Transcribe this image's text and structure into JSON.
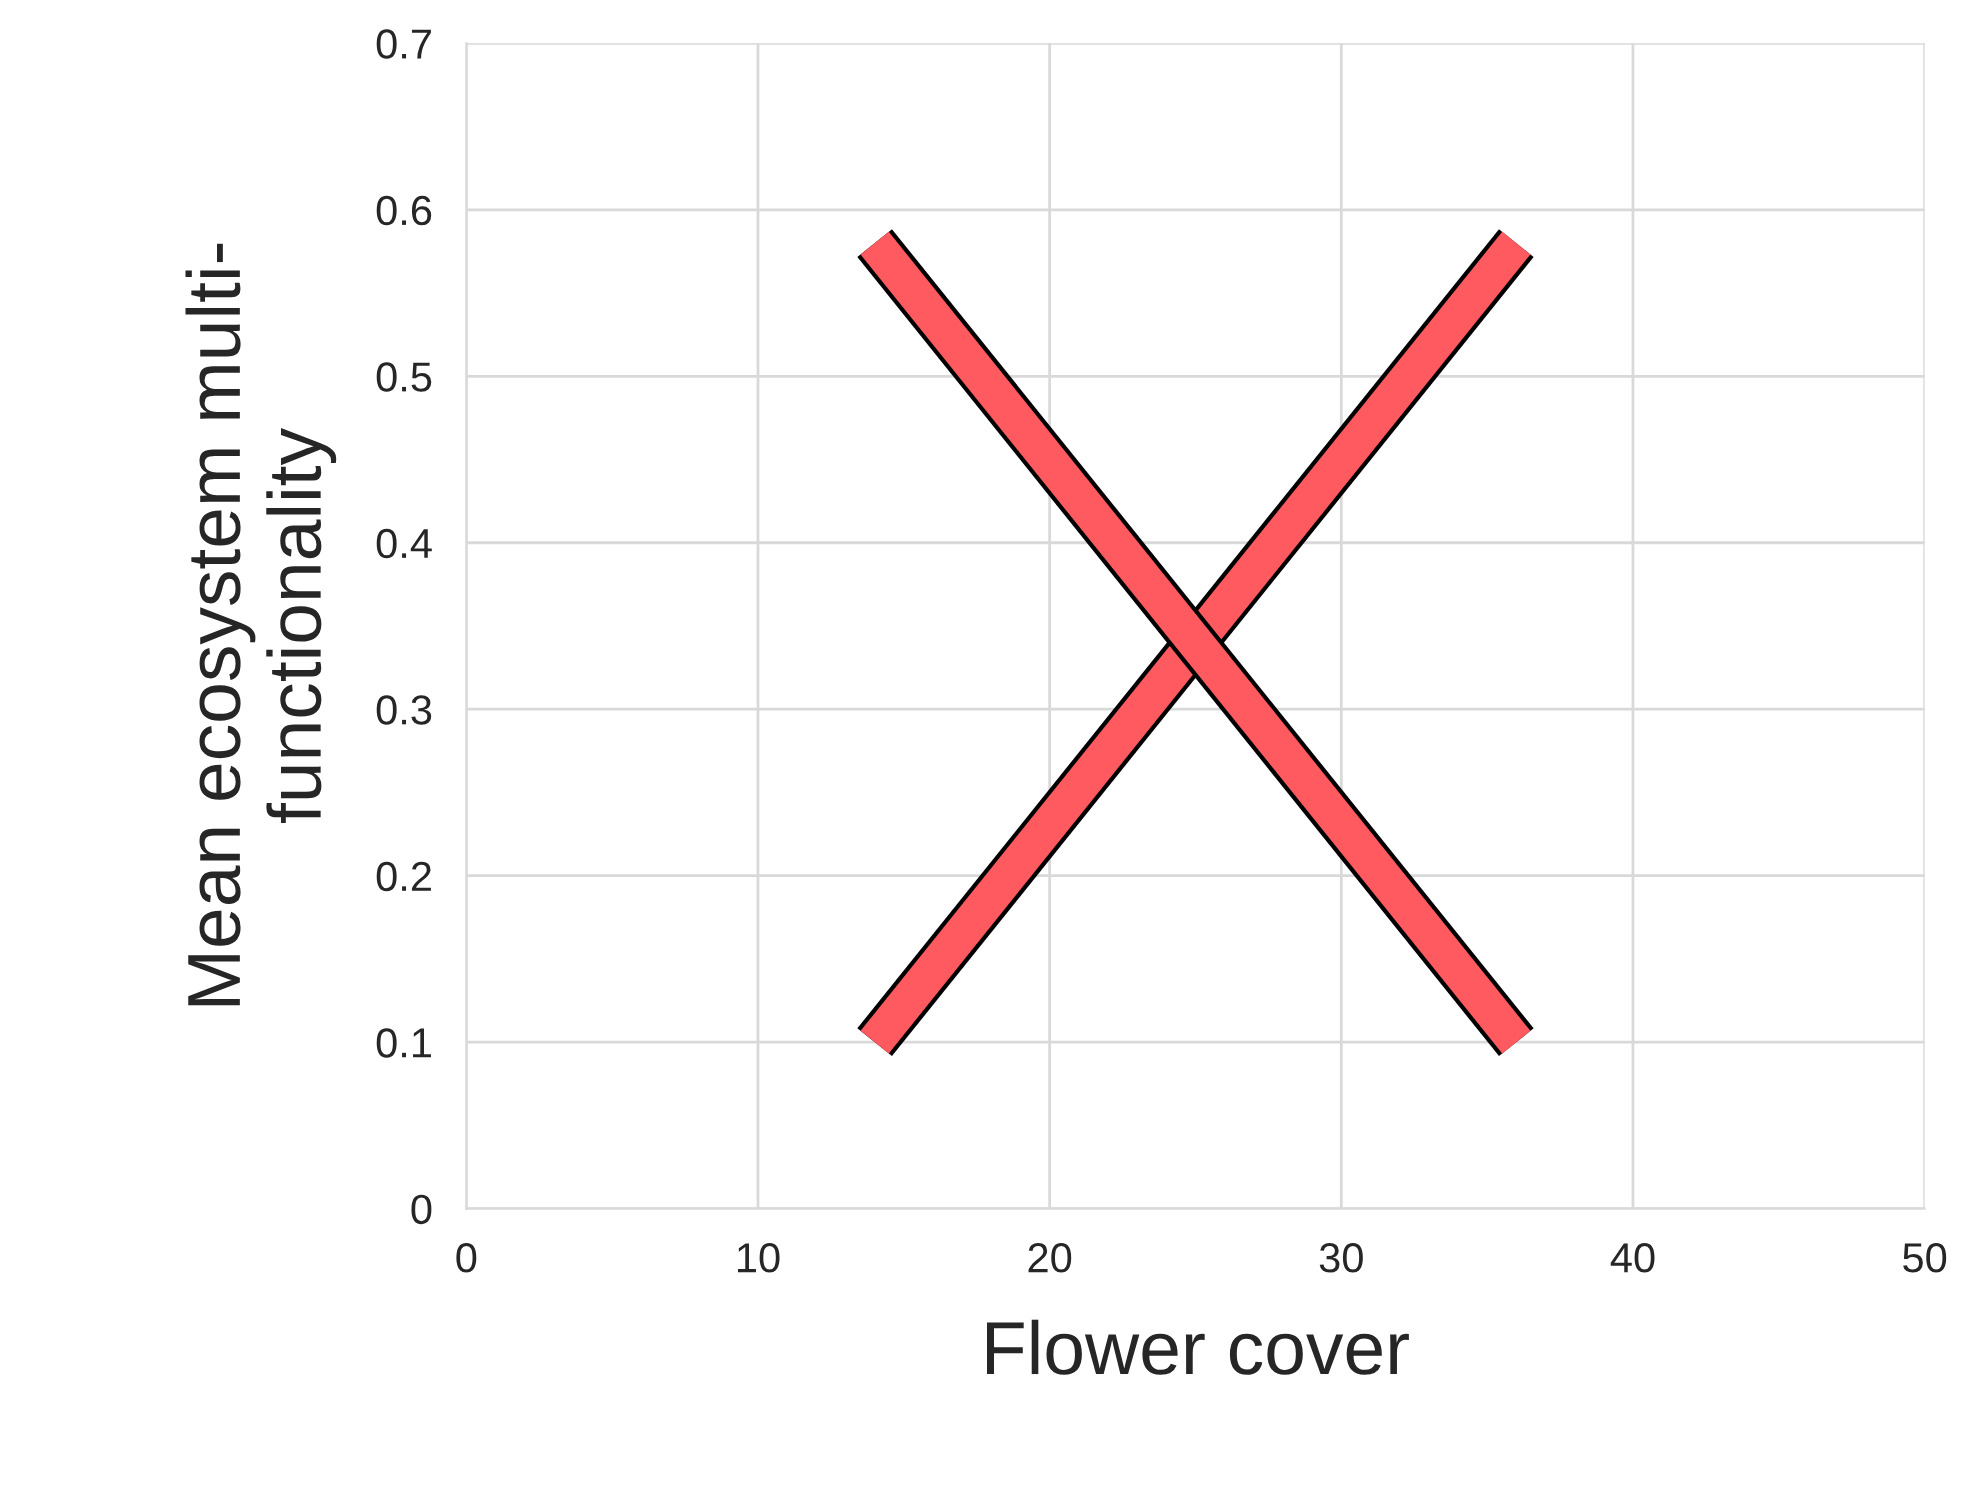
{
  "chart_data": {
    "type": "line",
    "xlabel": "Flower cover",
    "ylabel": "Mean ecosystem multi-\nfunctionality",
    "x": [
      14,
      36
    ],
    "series": [
      {
        "color": "#ff5a5f",
        "values": [
          0.1,
          0.58
        ]
      },
      {
        "color": "#ff5a5f",
        "values": [
          0.58,
          0.1
        ]
      }
    ],
    "xlim": [
      0,
      50
    ],
    "xticks": [
      0,
      10,
      20,
      30,
      40,
      50
    ],
    "ylim": [
      0,
      0.7
    ],
    "yticks": [
      0,
      0.1,
      0.2,
      0.3,
      0.4,
      0.5,
      0.6,
      0.7
    ],
    "grid": true,
    "marker": "none",
    "line_style": "solid"
  }
}
